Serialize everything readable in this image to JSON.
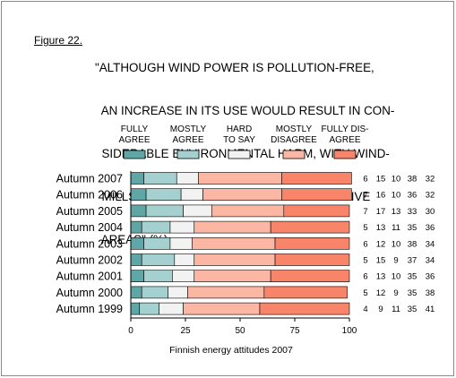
{
  "figure_label": "Figure 22.",
  "title_lines": [
    "\"ALTHOUGH WIND POWER IS POLLUTION-FREE,",
    "  AN INCREASE IN ITS USE WOULD RESULT IN CON-",
    "  SIDERABLE ENVIRONMENTAL HARM, WITH WIND-",
    "  MILLS SPOILING THE SCENERY IN EXTENSIVE",
    "  AREAS\" (%)."
  ],
  "chart_data": {
    "type": "bar",
    "orientation": "horizontal",
    "stacked": true,
    "footer": "Finnish energy attitudes 2007",
    "xlim": [
      0,
      100
    ],
    "xticks": [
      "0",
      "25",
      "50",
      "75",
      "100"
    ],
    "categories": [
      "Autumn 2007",
      "Autumn 2006",
      "Autumn 2005",
      "Autumn 2004",
      "Autumn 2003",
      "Autumn 2002",
      "Autumn 2001",
      "Autumn 2000",
      "Autumn 1999"
    ],
    "series": [
      {
        "name": "FULLY AGREE",
        "legend_lines": [
          "FULLY",
          "AGREE"
        ],
        "color": "#5fa6a6",
        "values": [
          6,
          7,
          7,
          5,
          6,
          5,
          6,
          5,
          4
        ]
      },
      {
        "name": "MOSTLY AGREE",
        "legend_lines": [
          "MOSTLY",
          "AGREE"
        ],
        "color": "#a4d0d0",
        "values": [
          15,
          16,
          17,
          13,
          12,
          15,
          13,
          12,
          9
        ]
      },
      {
        "name": "HARD TO SAY",
        "legend_lines": [
          "HARD",
          "TO SAY"
        ],
        "color": "#f2f2f2",
        "values": [
          10,
          10,
          13,
          11,
          10,
          9,
          10,
          9,
          11
        ]
      },
      {
        "name": "MOSTLY DISAGREE",
        "legend_lines": [
          "MOSTLY",
          "DISAGREE"
        ],
        "color": "#fbb7a4",
        "values": [
          38,
          36,
          33,
          35,
          38,
          37,
          35,
          35,
          35
        ]
      },
      {
        "name": "FULLY DISAGREE",
        "legend_lines": [
          "FULLY DIS-",
          "AGREE"
        ],
        "color": "#f88569",
        "values": [
          32,
          32,
          30,
          36,
          34,
          34,
          36,
          38,
          41
        ]
      }
    ]
  }
}
